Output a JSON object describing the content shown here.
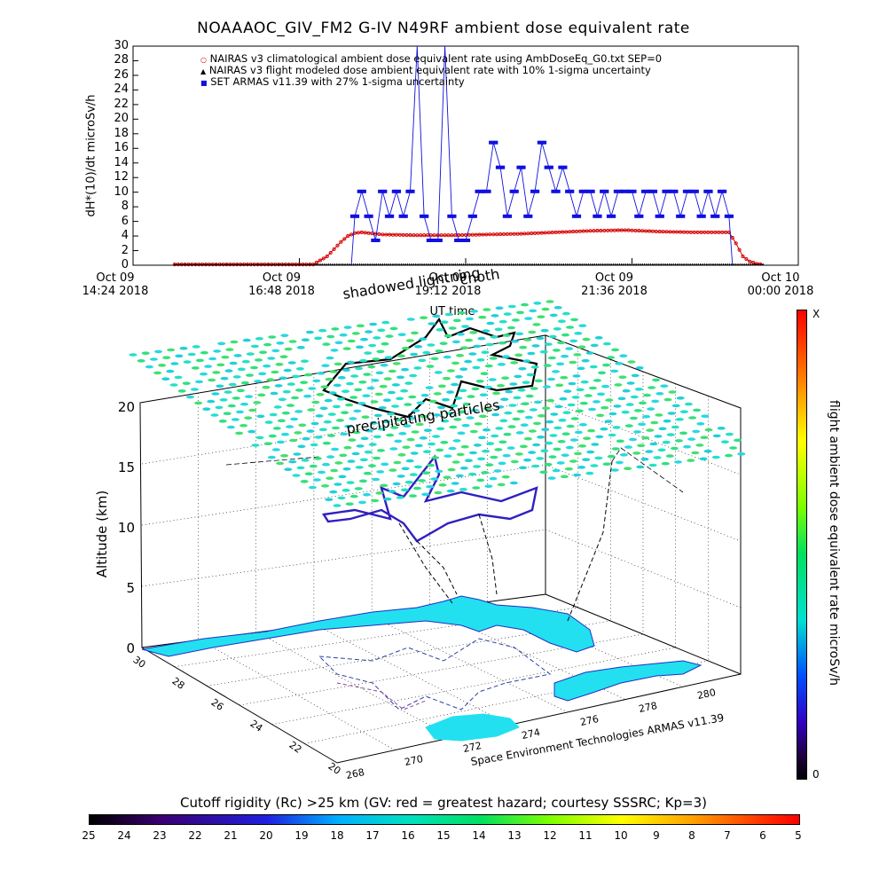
{
  "title": "NOAAAOC_GIV_FM2 G-IV    N49RF  ambient dose equivalent rate",
  "chart_data": [
    {
      "type": "scatter",
      "title": "NOAAAOC_GIV_FM2 G-IV    N49RF  ambient dose equivalent rate",
      "ylabel": "dH*(10)/dt microSv/h",
      "xlabel": "UT time",
      "ylim": [
        0,
        30
      ],
      "yticks": [
        "0",
        "2",
        "4",
        "6",
        "8",
        "10",
        "12",
        "14",
        "16",
        "18",
        "20",
        "22",
        "24",
        "26",
        "28",
        "30"
      ],
      "xticks": [
        {
          "date": "Oct 09",
          "time": "14:24 2018"
        },
        {
          "date": "Oct 09",
          "time": "16:48 2018"
        },
        {
          "date": "Oct 09",
          "time": "19:12 2018"
        },
        {
          "date": "Oct 09",
          "time": "21:36 2018"
        },
        {
          "date": "Oct 10",
          "time": "00:00 2018"
        }
      ],
      "x_unit": "hours UT (Oct 09)",
      "xlim": [
        14.4,
        24.0
      ],
      "legend": [
        {
          "symbol": "○",
          "label": "NAIRAS v3 climatological ambient dose equivalent rate using AmbDoseEq_G0.txt SEP=0"
        },
        {
          "symbol": "▲",
          "label": "NAIRAS v3 flight modeled dose ambient equivalent rate with 10% 1-sigma uncertainty"
        },
        {
          "symbol": "■",
          "label": "SET ARMAS v11.39 with 27% 1-sigma uncertainty"
        }
      ],
      "legend_position": "top-left",
      "series": [
        {
          "name": "NAIRAS v3 climatological ambient dose equivalent rate using AmbDoseEq_G0.txt SEP=0",
          "color": "#d40000",
          "x": [
            15.0,
            16.0,
            17.0,
            17.2,
            17.4,
            17.5,
            17.6,
            17.7,
            17.8,
            18.0,
            18.5,
            19.0,
            19.5,
            20.0,
            20.5,
            21.0,
            21.5,
            22.0,
            22.5,
            23.0,
            23.1,
            23.2,
            23.3,
            23.4,
            23.5
          ],
          "values": [
            0.1,
            0.1,
            0.1,
            1.2,
            3.2,
            4.0,
            4.4,
            4.5,
            4.4,
            4.2,
            4.1,
            4.1,
            4.2,
            4.3,
            4.5,
            4.7,
            4.8,
            4.6,
            4.5,
            4.5,
            3.0,
            1.2,
            0.5,
            0.2,
            0.1
          ]
        },
        {
          "name": "SET ARMAS v11.39 with 27% 1-sigma uncertainty",
          "color": "#1010e0",
          "x": [
            17.6,
            17.7,
            17.8,
            17.9,
            18.0,
            18.1,
            18.2,
            18.3,
            18.4,
            18.5,
            18.6,
            18.7,
            18.8,
            18.9,
            19.0,
            19.1,
            19.2,
            19.3,
            19.4,
            19.5,
            19.6,
            19.7,
            19.8,
            19.9,
            20.0,
            20.1,
            20.2,
            20.3,
            20.4,
            20.5,
            20.6,
            20.7,
            20.8,
            20.9,
            21.0,
            21.1,
            21.2,
            21.3,
            21.4,
            21.5,
            21.6,
            21.7,
            21.8,
            21.9,
            22.0,
            22.1,
            22.2,
            22.3,
            22.4,
            22.5,
            22.6,
            22.7,
            22.8,
            22.9,
            23.0
          ],
          "values": [
            6.7,
            10.1,
            6.7,
            3.4,
            10.1,
            6.7,
            10.1,
            6.7,
            10.1,
            30,
            6.7,
            3.4,
            3.4,
            30,
            6.7,
            3.4,
            3.4,
            6.7,
            10.1,
            10.1,
            16.8,
            13.4,
            6.7,
            10.1,
            13.4,
            6.7,
            10.1,
            16.8,
            13.4,
            10.1,
            13.4,
            10.1,
            6.7,
            10.1,
            10.1,
            6.7,
            10.1,
            6.7,
            10.1,
            10.1,
            10.1,
            6.7,
            10.1,
            10.1,
            6.7,
            10.1,
            10.1,
            6.7,
            10.1,
            10.1,
            6.7,
            10.1,
            6.7,
            10.1,
            6.7
          ]
        }
      ]
    },
    {
      "type": "scatter",
      "title": "precipitating particles",
      "zlabel": "Altitude (km)",
      "zticks": [
        "0",
        "5",
        "10",
        "15",
        "20"
      ],
      "lat_ticks": [
        "30",
        "28",
        "26",
        "24",
        "22",
        "20"
      ],
      "lon_ticks": [
        "268",
        "270",
        "272",
        "274",
        "276",
        "278",
        "280"
      ],
      "annotations": [
        "shadowed lightning",
        "cnoth",
        "precipitating particles",
        "Space Environment Technologies ARMAS v11.39"
      ],
      "colorbar": {
        "label": "flight ambient dose equivalent rate microSv/h",
        "top_label": "X",
        "bottom_label": "0"
      }
    },
    {
      "type": "heatmap",
      "title": "Cutoff rigidity (Rc) >25 km (GV: red = greatest hazard; courtesy SSSRC; Kp=3)",
      "ticks": [
        "25",
        "24",
        "23",
        "22",
        "21",
        "20",
        "19",
        "18",
        "17",
        "16",
        "15",
        "14",
        "13",
        "12",
        "11",
        "10",
        "9",
        "8",
        "7",
        "6",
        "5"
      ]
    }
  ]
}
